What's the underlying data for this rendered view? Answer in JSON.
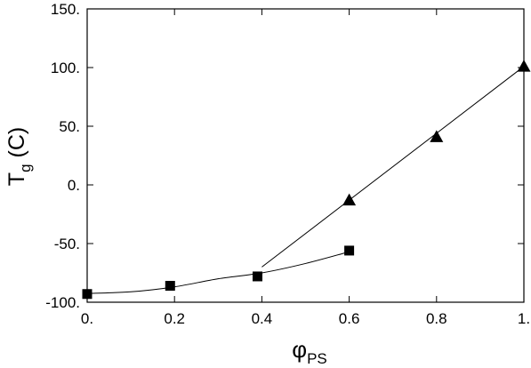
{
  "chart_data": {
    "type": "scatter",
    "xlabel": "φ",
    "xlabel_sub": "PS",
    "ylabel": "T",
    "ylabel_sub": "g",
    "ylabel_suffix": " (C)",
    "xlim": [
      0,
      1
    ],
    "ylim": [
      -100,
      150
    ],
    "x_ticks": [
      {
        "value": 0,
        "label": "0."
      },
      {
        "value": 0.2,
        "label": "0.2"
      },
      {
        "value": 0.4,
        "label": "0.4"
      },
      {
        "value": 0.6,
        "label": "0.6"
      },
      {
        "value": 0.8,
        "label": "0.8"
      },
      {
        "value": 1,
        "label": "1."
      }
    ],
    "y_ticks": [
      {
        "value": -100,
        "label": "-100."
      },
      {
        "value": -50,
        "label": "-50."
      },
      {
        "value": 0,
        "label": "0."
      },
      {
        "value": 50,
        "label": "50."
      },
      {
        "value": 100,
        "label": "100."
      },
      {
        "value": 150,
        "label": "150."
      }
    ],
    "grid": false,
    "series": [
      {
        "marker": "square",
        "points": [
          {
            "x": 0.0,
            "y": -93
          },
          {
            "x": 0.19,
            "y": -86
          },
          {
            "x": 0.39,
            "y": -78
          },
          {
            "x": 0.6,
            "y": -56
          }
        ],
        "fit_curve": [
          {
            "x": 0.0,
            "y": -92.5
          },
          {
            "x": 0.1,
            "y": -91.1
          },
          {
            "x": 0.2,
            "y": -86.9
          },
          {
            "x": 0.3,
            "y": -80
          },
          {
            "x": 0.4,
            "y": -75
          },
          {
            "x": 0.5,
            "y": -67
          },
          {
            "x": 0.6,
            "y": -57
          }
        ]
      },
      {
        "marker": "triangle",
        "points": [
          {
            "x": 0.6,
            "y": -13
          },
          {
            "x": 0.8,
            "y": 41
          },
          {
            "x": 1.0,
            "y": 101
          }
        ],
        "fit_curve": [
          {
            "x": 0.4,
            "y": -70
          },
          {
            "x": 1.0,
            "y": 101
          }
        ]
      }
    ]
  }
}
